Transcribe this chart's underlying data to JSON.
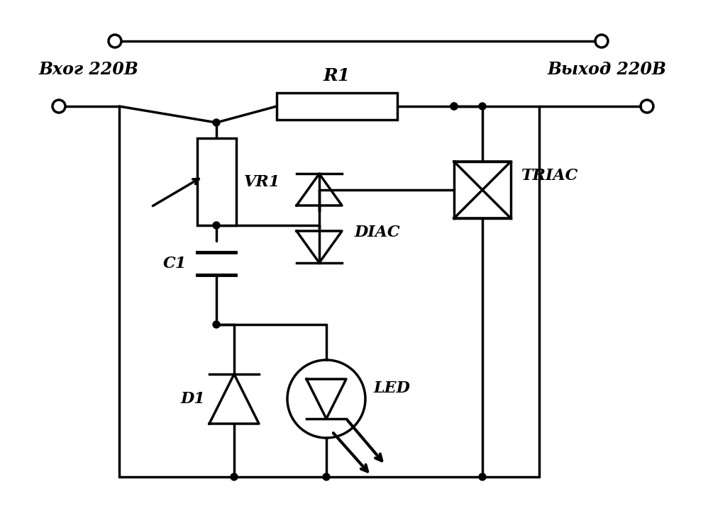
{
  "bg_color": "#ffffff",
  "line_color": "#000000",
  "lw": 2.5,
  "lw_thin": 2.0,
  "label_vhod": "Вхог 220В",
  "label_vyhod": "Выход 220В",
  "label_vr1": "VR1",
  "label_r1": "R1",
  "label_c1": "C1",
  "label_d1": "D1",
  "label_diac": "DIAC",
  "label_triac": "TRIAC",
  "label_led": "LED",
  "font_labels": 17,
  "font_comp": 15
}
